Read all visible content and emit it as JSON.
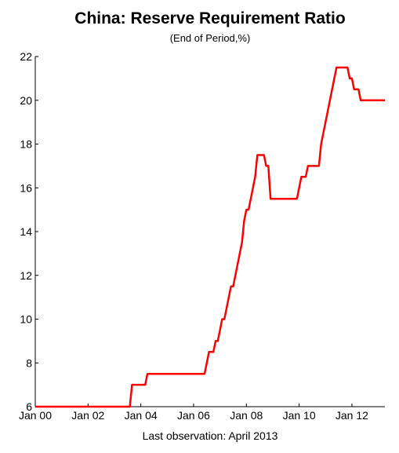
{
  "chart_data": {
    "type": "line",
    "title": "China: Reserve Requirement Ratio",
    "subtitle": "(End of Period,%)",
    "footnote": "Last observation: April 2013",
    "x": [
      "2000-01",
      "2003-08",
      "2003-09",
      "2004-03",
      "2004-04",
      "2006-06",
      "2006-07",
      "2006-08",
      "2006-10",
      "2006-11",
      "2006-12",
      "2007-01",
      "2007-02",
      "2007-03",
      "2007-04",
      "2007-05",
      "2007-06",
      "2007-07",
      "2007-08",
      "2007-09",
      "2007-10",
      "2007-11",
      "2007-12",
      "2008-01",
      "2008-02",
      "2008-03",
      "2008-04",
      "2008-05",
      "2008-06",
      "2008-09",
      "2008-10",
      "2008-11",
      "2008-12",
      "2009-12",
      "2010-01",
      "2010-02",
      "2010-04",
      "2010-05",
      "2010-10",
      "2010-11",
      "2010-12",
      "2011-01",
      "2011-02",
      "2011-03",
      "2011-04",
      "2011-05",
      "2011-06",
      "2011-11",
      "2011-12",
      "2012-01",
      "2012-02",
      "2012-04",
      "2012-05",
      "2013-04"
    ],
    "series": [
      {
        "color": "#ff0000",
        "values": [
          6,
          6,
          7,
          7,
          7.5,
          7.5,
          8,
          8.5,
          8.5,
          9,
          9,
          9.5,
          10,
          10,
          10.5,
          11,
          11.5,
          11.5,
          12,
          12.5,
          13,
          13.5,
          14.5,
          15,
          15,
          15.5,
          16,
          16.5,
          17.5,
          17.5,
          17,
          17,
          15.5,
          15.5,
          16,
          16.5,
          16.5,
          17,
          17,
          18,
          18.5,
          19,
          19.5,
          20,
          20.5,
          21,
          21.5,
          21.5,
          21,
          21,
          20.5,
          20.5,
          20,
          20
        ]
      }
    ],
    "xlim": [
      "2000-01",
      "2013-04"
    ],
    "xticks": [
      {
        "value": "2000-01",
        "label": "Jan 00"
      },
      {
        "value": "2002-01",
        "label": "Jan 02"
      },
      {
        "value": "2004-01",
        "label": "Jan 04"
      },
      {
        "value": "2006-01",
        "label": "Jan 06"
      },
      {
        "value": "2008-01",
        "label": "Jan 08"
      },
      {
        "value": "2010-01",
        "label": "Jan 10"
      },
      {
        "value": "2012-01",
        "label": "Jan 12"
      }
    ],
    "ylim": [
      6,
      22
    ],
    "yticks": [
      6,
      8,
      10,
      12,
      14,
      16,
      18,
      20,
      22
    ]
  }
}
